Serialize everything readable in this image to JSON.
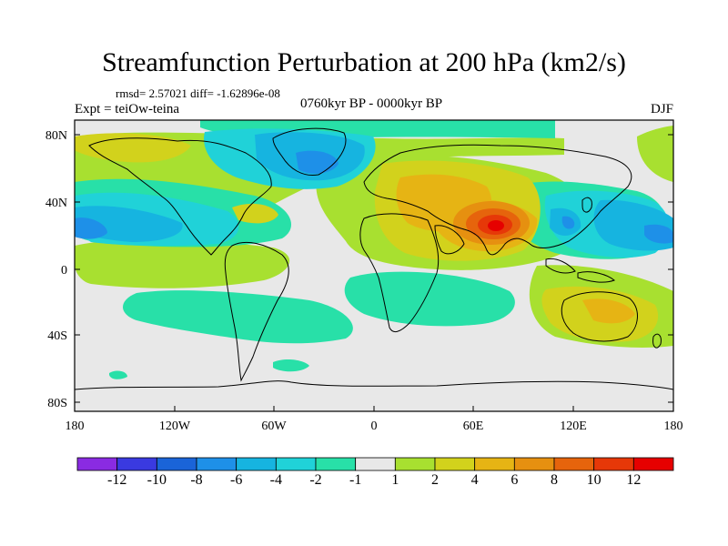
{
  "title": "Streamfunction Perturbation at 200 hPa (km2/s)",
  "stats": "rmsd= 2.57021 diff= -1.62896e-08",
  "experiment": "Expt = teiOw-teina",
  "period": "0760kyr BP - 0000kyr BP",
  "season": "DJF",
  "lat_labels": [
    "80N",
    "40N",
    "0",
    "40S",
    "80S"
  ],
  "lon_labels": [
    "180",
    "120W",
    "60W",
    "0",
    "60E",
    "120E",
    "180"
  ],
  "colorbar": {
    "labels": [
      "-12",
      "-10",
      "-8",
      "-6",
      "-4",
      "-2",
      "-1",
      "1",
      "2",
      "4",
      "6",
      "8",
      "10",
      "12"
    ],
    "colors": [
      "#8a2be2",
      "#3a3ae0",
      "#1a64d8",
      "#1e90e8",
      "#16b4e0",
      "#20d2d8",
      "#28e0a8",
      "#e8e8e8",
      "#a8e030",
      "#d2d21c",
      "#e6b414",
      "#e69010",
      "#e6640c",
      "#e63808",
      "#e60000"
    ]
  },
  "colors": {
    "background": "#e8e8e8",
    "frame": "#000000"
  }
}
